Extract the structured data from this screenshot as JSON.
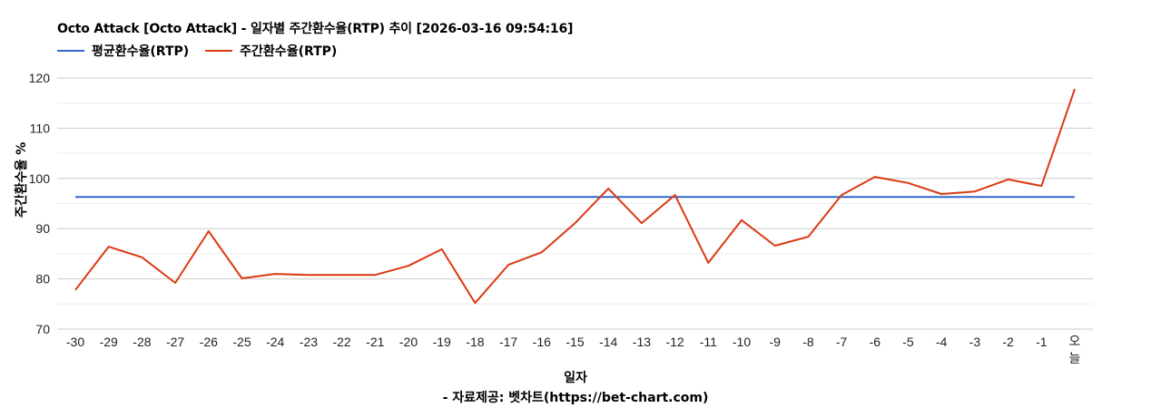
{
  "header": {
    "title": "Octo Attack [Octo Attack] - 일자별 주간환수율(RTP) 추이 [2026-03-16 09:54:16]"
  },
  "legend": [
    {
      "label": "평균환수율(RTP)",
      "color": "#3366cc"
    },
    {
      "label": "주간환수율(RTP)",
      "color": "#dc3912"
    }
  ],
  "axes": {
    "ylabel": "주간환수율 %",
    "xlabel": "일자"
  },
  "footer": {
    "credit": "- 자료제공: 벳차트(https://bet-chart.com)"
  },
  "chart_data": {
    "type": "line",
    "title": "Octo Attack [Octo Attack] - 일자별 주간환수율(RTP) 추이 [2026-03-16 09:54:16]",
    "xlabel": "일자",
    "ylabel": "주간환수율 %",
    "ylim": [
      70,
      120
    ],
    "yticks": [
      70,
      80,
      90,
      100,
      110,
      120
    ],
    "grid": true,
    "legend_position": "top-left",
    "categories": [
      "-30",
      "-29",
      "-28",
      "-27",
      "-26",
      "-25",
      "-24",
      "-23",
      "-22",
      "-21",
      "-20",
      "-19",
      "-18",
      "-17",
      "-16",
      "-15",
      "-14",
      "-13",
      "-12",
      "-11",
      "-10",
      "-9",
      "-8",
      "-7",
      "-6",
      "-5",
      "-4",
      "-3",
      "-2",
      "-1",
      "오늘"
    ],
    "series": [
      {
        "name": "평균환수율(RTP)",
        "color": "#3366cc",
        "values": [
          96.3,
          96.3,
          96.3,
          96.3,
          96.3,
          96.3,
          96.3,
          96.3,
          96.3,
          96.3,
          96.3,
          96.3,
          96.3,
          96.3,
          96.3,
          96.3,
          96.3,
          96.3,
          96.3,
          96.3,
          96.3,
          96.3,
          96.3,
          96.3,
          96.3,
          96.3,
          96.3,
          96.3,
          96.3,
          96.3,
          96.3
        ]
      },
      {
        "name": "주간환수율(RTP)",
        "color": "#dc3912",
        "values": [
          77.8,
          86.4,
          84.3,
          79.2,
          89.5,
          80.1,
          81.0,
          80.8,
          80.8,
          80.8,
          82.6,
          85.9,
          75.2,
          82.8,
          85.3,
          91.1,
          98.0,
          91.1,
          96.7,
          83.2,
          91.7,
          86.6,
          88.4,
          96.7,
          100.3,
          99.1,
          96.9,
          97.4,
          99.8,
          98.5,
          117.8
        ]
      }
    ]
  }
}
